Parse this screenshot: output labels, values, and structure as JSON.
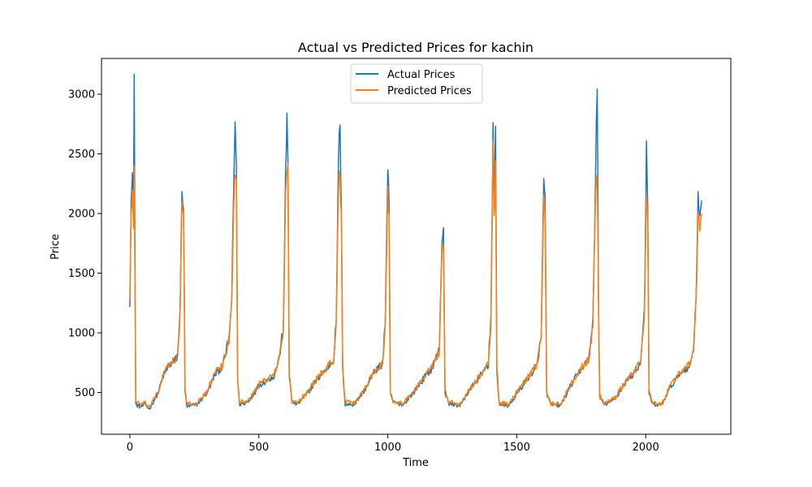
{
  "chart_data": {
    "type": "line",
    "title": "Actual vs Predicted Prices for kachin",
    "xlabel": "Time",
    "ylabel": "Price",
    "xlim": [
      -110,
      2330
    ],
    "ylim": [
      150,
      3300
    ],
    "xticks": [
      0,
      500,
      1000,
      1500,
      2000
    ],
    "yticks": [
      500,
      1000,
      1500,
      2000,
      2500,
      3000
    ],
    "grid": false,
    "legend_position": "top-center",
    "series": [
      {
        "name": "Actual Prices",
        "color": "#1f77b4",
        "keypoints": [
          [
            0,
            1270
          ],
          [
            5,
            2100
          ],
          [
            10,
            2260
          ],
          [
            14,
            2000
          ],
          [
            17,
            3170
          ],
          [
            20,
            1500
          ],
          [
            23,
            400
          ],
          [
            40,
            380
          ],
          [
            60,
            400
          ],
          [
            75,
            360
          ],
          [
            90,
            420
          ],
          [
            110,
            500
          ],
          [
            130,
            640
          ],
          [
            150,
            720
          ],
          [
            170,
            760
          ],
          [
            185,
            800
          ],
          [
            195,
            1200
          ],
          [
            202,
            2250
          ],
          [
            208,
            2060
          ],
          [
            214,
            500
          ],
          [
            222,
            380
          ],
          [
            260,
            400
          ],
          [
            300,
            500
          ],
          [
            330,
            650
          ],
          [
            360,
            720
          ],
          [
            385,
            960
          ],
          [
            395,
            1300
          ],
          [
            402,
            2100
          ],
          [
            408,
            2780
          ],
          [
            413,
            2400
          ],
          [
            418,
            600
          ],
          [
            425,
            400
          ],
          [
            460,
            420
          ],
          [
            500,
            560
          ],
          [
            530,
            600
          ],
          [
            560,
            640
          ],
          [
            580,
            800
          ],
          [
            595,
            1050
          ],
          [
            604,
            2300
          ],
          [
            609,
            2820
          ],
          [
            613,
            2460
          ],
          [
            618,
            650
          ],
          [
            628,
            420
          ],
          [
            650,
            400
          ],
          [
            690,
            500
          ],
          [
            730,
            620
          ],
          [
            760,
            690
          ],
          [
            790,
            780
          ],
          [
            800,
            1100
          ],
          [
            809,
            2400
          ],
          [
            815,
            2790
          ],
          [
            820,
            2000
          ],
          [
            825,
            700
          ],
          [
            835,
            400
          ],
          [
            870,
            400
          ],
          [
            910,
            520
          ],
          [
            950,
            680
          ],
          [
            980,
            740
          ],
          [
            990,
            1100
          ],
          [
            1000,
            2300
          ],
          [
            1005,
            2100
          ],
          [
            1010,
            500
          ],
          [
            1020,
            420
          ],
          [
            1060,
            400
          ],
          [
            1100,
            500
          ],
          [
            1140,
            620
          ],
          [
            1170,
            700
          ],
          [
            1200,
            860
          ],
          [
            1210,
            1790
          ],
          [
            1216,
            1880
          ],
          [
            1222,
            500
          ],
          [
            1235,
            410
          ],
          [
            1280,
            390
          ],
          [
            1320,
            530
          ],
          [
            1360,
            640
          ],
          [
            1390,
            740
          ],
          [
            1400,
            1150
          ],
          [
            1408,
            2730
          ],
          [
            1413,
            2000
          ],
          [
            1418,
            2660
          ],
          [
            1423,
            700
          ],
          [
            1432,
            400
          ],
          [
            1470,
            390
          ],
          [
            1510,
            520
          ],
          [
            1550,
            640
          ],
          [
            1580,
            730
          ],
          [
            1595,
            1000
          ],
          [
            1605,
            2290
          ],
          [
            1610,
            2100
          ],
          [
            1616,
            500
          ],
          [
            1630,
            400
          ],
          [
            1670,
            390
          ],
          [
            1710,
            560
          ],
          [
            1750,
            700
          ],
          [
            1780,
            780
          ],
          [
            1795,
            1100
          ],
          [
            1805,
            2200
          ],
          [
            1812,
            3180
          ],
          [
            1817,
            1200
          ],
          [
            1822,
            450
          ],
          [
            1840,
            400
          ],
          [
            1880,
            440
          ],
          [
            1920,
            580
          ],
          [
            1950,
            650
          ],
          [
            1980,
            750
          ],
          [
            1995,
            1200
          ],
          [
            2003,
            2500
          ],
          [
            2008,
            2000
          ],
          [
            2013,
            500
          ],
          [
            2025,
            400
          ],
          [
            2060,
            390
          ],
          [
            2100,
            560
          ],
          [
            2140,
            680
          ],
          [
            2170,
            720
          ],
          [
            2185,
            850
          ],
          [
            2195,
            1300
          ],
          [
            2203,
            2110
          ],
          [
            2210,
            2050
          ],
          [
            2217,
            2110
          ]
        ]
      },
      {
        "name": "Predicted Prices",
        "color": "#ff7f0e",
        "keypoints": [
          [
            0,
            1300
          ],
          [
            5,
            2000
          ],
          [
            10,
            2150
          ],
          [
            14,
            1950
          ],
          [
            17,
            2420
          ],
          [
            20,
            1400
          ],
          [
            23,
            420
          ],
          [
            40,
            400
          ],
          [
            60,
            410
          ],
          [
            75,
            380
          ],
          [
            90,
            430
          ],
          [
            110,
            510
          ],
          [
            130,
            650
          ],
          [
            150,
            730
          ],
          [
            170,
            770
          ],
          [
            185,
            800
          ],
          [
            195,
            1150
          ],
          [
            202,
            2120
          ],
          [
            208,
            1980
          ],
          [
            214,
            520
          ],
          [
            222,
            400
          ],
          [
            260,
            410
          ],
          [
            300,
            510
          ],
          [
            330,
            660
          ],
          [
            360,
            730
          ],
          [
            385,
            940
          ],
          [
            395,
            1250
          ],
          [
            402,
            2000
          ],
          [
            408,
            2420
          ],
          [
            413,
            2300
          ],
          [
            418,
            620
          ],
          [
            425,
            420
          ],
          [
            460,
            430
          ],
          [
            500,
            570
          ],
          [
            530,
            610
          ],
          [
            560,
            650
          ],
          [
            580,
            800
          ],
          [
            595,
            1000
          ],
          [
            604,
            2200
          ],
          [
            609,
            2400
          ],
          [
            613,
            2350
          ],
          [
            618,
            670
          ],
          [
            628,
            430
          ],
          [
            650,
            410
          ],
          [
            690,
            510
          ],
          [
            730,
            630
          ],
          [
            760,
            700
          ],
          [
            790,
            780
          ],
          [
            800,
            1050
          ],
          [
            809,
            2250
          ],
          [
            815,
            2300
          ],
          [
            820,
            1950
          ],
          [
            825,
            720
          ],
          [
            835,
            420
          ],
          [
            870,
            410
          ],
          [
            910,
            530
          ],
          [
            950,
            690
          ],
          [
            980,
            750
          ],
          [
            990,
            1050
          ],
          [
            1000,
            2150
          ],
          [
            1005,
            2000
          ],
          [
            1010,
            520
          ],
          [
            1020,
            430
          ],
          [
            1060,
            410
          ],
          [
            1100,
            510
          ],
          [
            1140,
            630
          ],
          [
            1170,
            710
          ],
          [
            1200,
            850
          ],
          [
            1210,
            1700
          ],
          [
            1216,
            1750
          ],
          [
            1222,
            520
          ],
          [
            1235,
            420
          ],
          [
            1280,
            400
          ],
          [
            1320,
            540
          ],
          [
            1360,
            650
          ],
          [
            1390,
            740
          ],
          [
            1400,
            1100
          ],
          [
            1408,
            2500
          ],
          [
            1413,
            1950
          ],
          [
            1418,
            2380
          ],
          [
            1423,
            720
          ],
          [
            1432,
            420
          ],
          [
            1470,
            400
          ],
          [
            1510,
            530
          ],
          [
            1550,
            650
          ],
          [
            1580,
            740
          ],
          [
            1595,
            980
          ],
          [
            1605,
            2200
          ],
          [
            1610,
            2000
          ],
          [
            1616,
            520
          ],
          [
            1630,
            410
          ],
          [
            1670,
            400
          ],
          [
            1710,
            570
          ],
          [
            1750,
            710
          ],
          [
            1780,
            780
          ],
          [
            1795,
            1050
          ],
          [
            1805,
            2100
          ],
          [
            1812,
            2380
          ],
          [
            1817,
            1150
          ],
          [
            1822,
            470
          ],
          [
            1840,
            410
          ],
          [
            1880,
            450
          ],
          [
            1920,
            590
          ],
          [
            1950,
            660
          ],
          [
            1980,
            750
          ],
          [
            1995,
            1150
          ],
          [
            2003,
            2250
          ],
          [
            2008,
            1950
          ],
          [
            2013,
            520
          ],
          [
            2025,
            410
          ],
          [
            2060,
            400
          ],
          [
            2100,
            570
          ],
          [
            2140,
            690
          ],
          [
            2170,
            730
          ],
          [
            2185,
            850
          ],
          [
            2195,
            1250
          ],
          [
            2203,
            1950
          ],
          [
            2210,
            1850
          ],
          [
            2217,
            2000
          ]
        ]
      }
    ]
  }
}
